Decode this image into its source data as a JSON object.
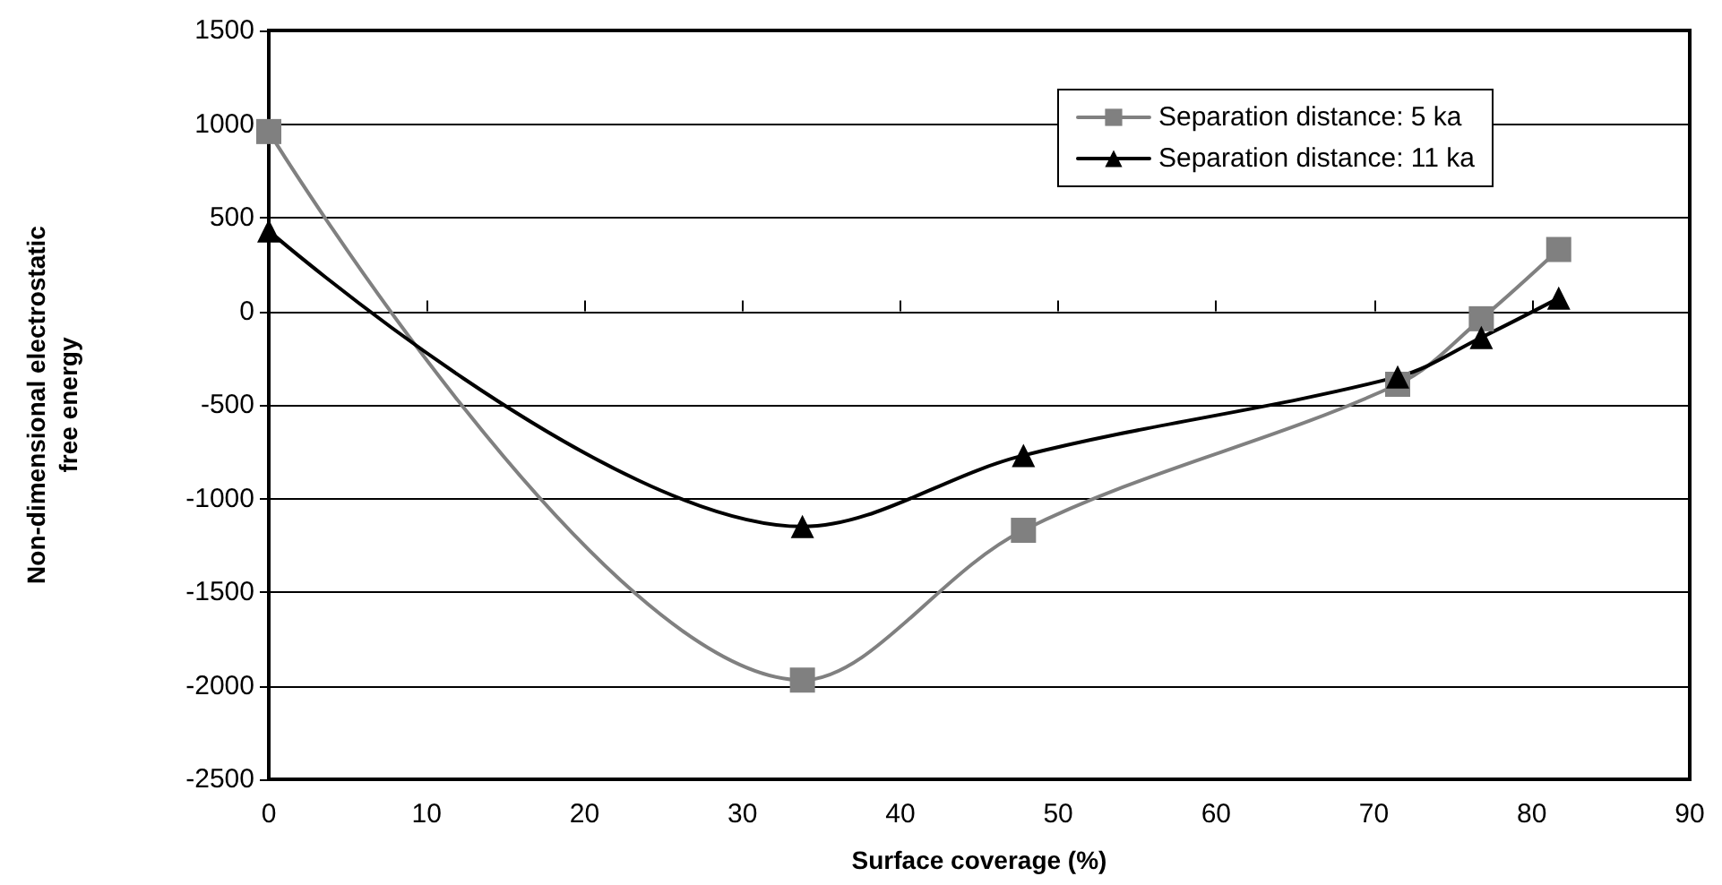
{
  "chart_data": {
    "type": "line",
    "xlabel": "Surface coverage (%)",
    "ylabel": "Non-dimensional electrostatic\nfree energy",
    "xlim": [
      0,
      90
    ],
    "xticks": [
      0,
      10,
      20,
      30,
      40,
      50,
      60,
      70,
      80,
      90
    ],
    "ylim": [
      -2500,
      1500
    ],
    "yticks": [
      -2500,
      -2000,
      -1500,
      -1000,
      -500,
      0,
      500,
      1000,
      1500
    ],
    "grid": "y",
    "legend": "top right",
    "series": [
      {
        "name": "Separation distance: 5 ka",
        "color": "#808080",
        "marker": "square",
        "x": [
          0,
          33.8,
          47.8,
          71.5,
          76.8,
          81.7
        ],
        "values": [
          960,
          -1970,
          -1170,
          -390,
          -40,
          330
        ]
      },
      {
        "name": "Separation distance: 11 ka",
        "color": "#000000",
        "marker": "triangle",
        "x": [
          0,
          33.8,
          47.8,
          71.5,
          76.8,
          81.7
        ],
        "values": [
          430,
          -1150,
          -770,
          -350,
          -140,
          70
        ]
      }
    ]
  }
}
